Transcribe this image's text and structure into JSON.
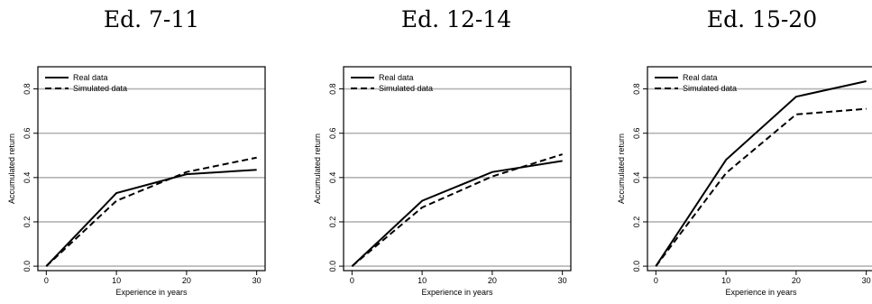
{
  "chart_data": [
    {
      "type": "line",
      "title": "Ed. 7-11",
      "xlabel": "Experience in years",
      "ylabel": "Accumulated return",
      "x": [
        0,
        10,
        20,
        30
      ],
      "xlim": [
        -1.2,
        31.2
      ],
      "ylim": [
        -0.02,
        0.9
      ],
      "xticks": [
        "0",
        "10",
        "20",
        "30"
      ],
      "yticks": [
        "0.0",
        "0.2",
        "0.4",
        "0.6",
        "0.8"
      ],
      "grid": "horizontal",
      "legend_position": "top-left",
      "series": [
        {
          "name": "Real data",
          "style": "solid",
          "values": [
            0.0,
            0.33,
            0.415,
            0.435
          ]
        },
        {
          "name": "Simulated data",
          "style": "dashed",
          "values": [
            0.0,
            0.295,
            0.425,
            0.49
          ]
        }
      ]
    },
    {
      "type": "line",
      "title": "Ed. 12-14",
      "xlabel": "Experience in years",
      "ylabel": "Accumulated return",
      "x": [
        0,
        10,
        20,
        30
      ],
      "xlim": [
        -1.2,
        31.2
      ],
      "ylim": [
        -0.02,
        0.9
      ],
      "xticks": [
        "0",
        "10",
        "20",
        "30"
      ],
      "yticks": [
        "0.0",
        "0.2",
        "0.4",
        "0.6",
        "0.8"
      ],
      "grid": "horizontal",
      "legend_position": "top-left",
      "series": [
        {
          "name": "Real data",
          "style": "solid",
          "values": [
            0.0,
            0.295,
            0.425,
            0.475
          ]
        },
        {
          "name": "Simulated data",
          "style": "dashed",
          "values": [
            0.0,
            0.265,
            0.405,
            0.505
          ]
        }
      ]
    },
    {
      "type": "line",
      "title": "Ed. 15-20",
      "xlabel": "Experience in years",
      "ylabel": "Accumulated return",
      "x": [
        0,
        10,
        20,
        30
      ],
      "xlim": [
        -1.2,
        31.2
      ],
      "ylim": [
        -0.02,
        0.9
      ],
      "xticks": [
        "0",
        "10",
        "20",
        "30"
      ],
      "yticks": [
        "0.0",
        "0.2",
        "0.4",
        "0.6",
        "0.8"
      ],
      "grid": "horizontal",
      "legend_position": "top-left",
      "series": [
        {
          "name": "Real data",
          "style": "solid",
          "values": [
            0.0,
            0.48,
            0.765,
            0.835
          ]
        },
        {
          "name": "Simulated data",
          "style": "dashed",
          "values": [
            0.0,
            0.42,
            0.685,
            0.71
          ]
        }
      ]
    }
  ]
}
